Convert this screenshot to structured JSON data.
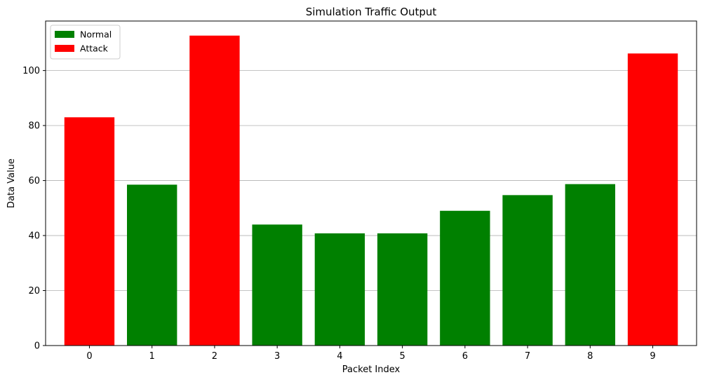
{
  "chart_data": {
    "type": "bar",
    "title": "Simulation Traffic Output",
    "xlabel": "Packet Index",
    "ylabel": "Data Value",
    "categories": [
      "0",
      "1",
      "2",
      "3",
      "4",
      "5",
      "6",
      "7",
      "8",
      "9"
    ],
    "values": [
      83,
      58.5,
      112.7,
      44,
      40.8,
      40.8,
      49,
      54.7,
      58.7,
      106.2
    ],
    "labels": [
      "Attack",
      "Normal",
      "Attack",
      "Normal",
      "Normal",
      "Normal",
      "Normal",
      "Normal",
      "Normal",
      "Attack"
    ],
    "ylim": [
      0,
      118
    ],
    "yticks": [
      0,
      20,
      40,
      60,
      80,
      100
    ],
    "grid": "y-major",
    "legend": {
      "placement": "top-left",
      "entries": [
        {
          "name": "Normal",
          "color": "#008000"
        },
        {
          "name": "Attack",
          "color": "#ff0000"
        }
      ]
    },
    "colors": {
      "Normal": "#008000",
      "Attack": "#ff0000"
    }
  }
}
